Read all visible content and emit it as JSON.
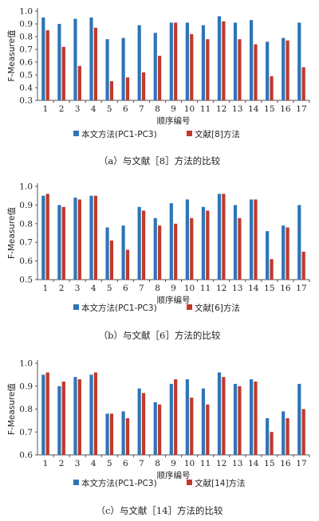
{
  "colors": {
    "series1": "#2E75B6",
    "series2": "#C0392B"
  },
  "chart_data": [
    {
      "type": "bar",
      "categories": [
        "1",
        "2",
        "3",
        "4",
        "5",
        "6",
        "7",
        "8",
        "9",
        "10",
        "11",
        "12",
        "13",
        "14",
        "15",
        "16",
        "17"
      ],
      "series": [
        {
          "name": "本文方法(PC1-PC3)",
          "values": [
            0.95,
            0.9,
            0.94,
            0.95,
            0.78,
            0.79,
            0.89,
            0.83,
            0.91,
            0.91,
            0.89,
            0.96,
            0.91,
            0.93,
            0.76,
            0.79,
            0.91
          ]
        },
        {
          "name": "文献[8]方法",
          "values": [
            0.85,
            0.72,
            0.57,
            0.87,
            0.45,
            0.48,
            0.52,
            0.65,
            0.91,
            0.82,
            0.78,
            0.92,
            0.78,
            0.74,
            0.49,
            0.77,
            0.56
          ]
        }
      ],
      "xlabel": "顺序编号",
      "ylabel": "F-Measure值",
      "ylim": [
        0.3,
        1.0
      ],
      "yticks": [
        "0.3",
        "0.4",
        "0.5",
        "0.6",
        "0.7",
        "0.8",
        "0.9",
        "1.0"
      ],
      "caption": "（a）与文献［8］方法的比较",
      "grid": false,
      "legend": "bottom"
    },
    {
      "type": "bar",
      "categories": [
        "1",
        "2",
        "3",
        "4",
        "5",
        "6",
        "7",
        "8",
        "9",
        "10",
        "11",
        "12",
        "13",
        "14",
        "15",
        "16",
        "17"
      ],
      "series": [
        {
          "name": "本文方法(PC1-PC3)",
          "values": [
            0.95,
            0.9,
            0.94,
            0.95,
            0.78,
            0.79,
            0.89,
            0.83,
            0.91,
            0.93,
            0.89,
            0.96,
            0.9,
            0.93,
            0.76,
            0.79,
            0.9
          ]
        },
        {
          "name": "文献[6]方法",
          "values": [
            0.96,
            0.89,
            0.93,
            0.95,
            0.71,
            0.66,
            0.87,
            0.79,
            0.8,
            0.83,
            0.87,
            0.96,
            0.83,
            0.93,
            0.61,
            0.78,
            0.65
          ]
        }
      ],
      "xlabel": "顺序编号",
      "ylabel": "F-Measure值",
      "ylim": [
        0.5,
        1.0
      ],
      "yticks": [
        "0.5",
        "0.6",
        "0.7",
        "0.8",
        "0.9",
        "1.0"
      ],
      "caption": "（b）与文献［6］方法的比较",
      "grid": false,
      "legend": "bottom"
    },
    {
      "type": "bar",
      "categories": [
        "1",
        "2",
        "3",
        "4",
        "5",
        "6",
        "7",
        "8",
        "9",
        "10",
        "11",
        "12",
        "13",
        "14",
        "15",
        "16",
        "17"
      ],
      "series": [
        {
          "name": "本文方法(PC1-PC3)",
          "values": [
            0.95,
            0.9,
            0.94,
            0.95,
            0.78,
            0.79,
            0.89,
            0.83,
            0.91,
            0.93,
            0.89,
            0.96,
            0.91,
            0.93,
            0.76,
            0.79,
            0.91
          ]
        },
        {
          "name": "文献[14]方法",
          "values": [
            0.96,
            0.92,
            0.93,
            0.96,
            0.78,
            0.76,
            0.87,
            0.82,
            0.93,
            0.85,
            0.82,
            0.94,
            0.9,
            0.92,
            0.7,
            0.76,
            0.8
          ]
        }
      ],
      "xlabel": "顺序编号",
      "ylabel": "F-Measure值",
      "ylim": [
        0.6,
        1.0
      ],
      "yticks": [
        "0.6",
        "0.7",
        "0.8",
        "0.9",
        "1.0"
      ],
      "caption": "（c）与文献［14］方法的比较",
      "grid": false,
      "legend": "bottom"
    }
  ]
}
